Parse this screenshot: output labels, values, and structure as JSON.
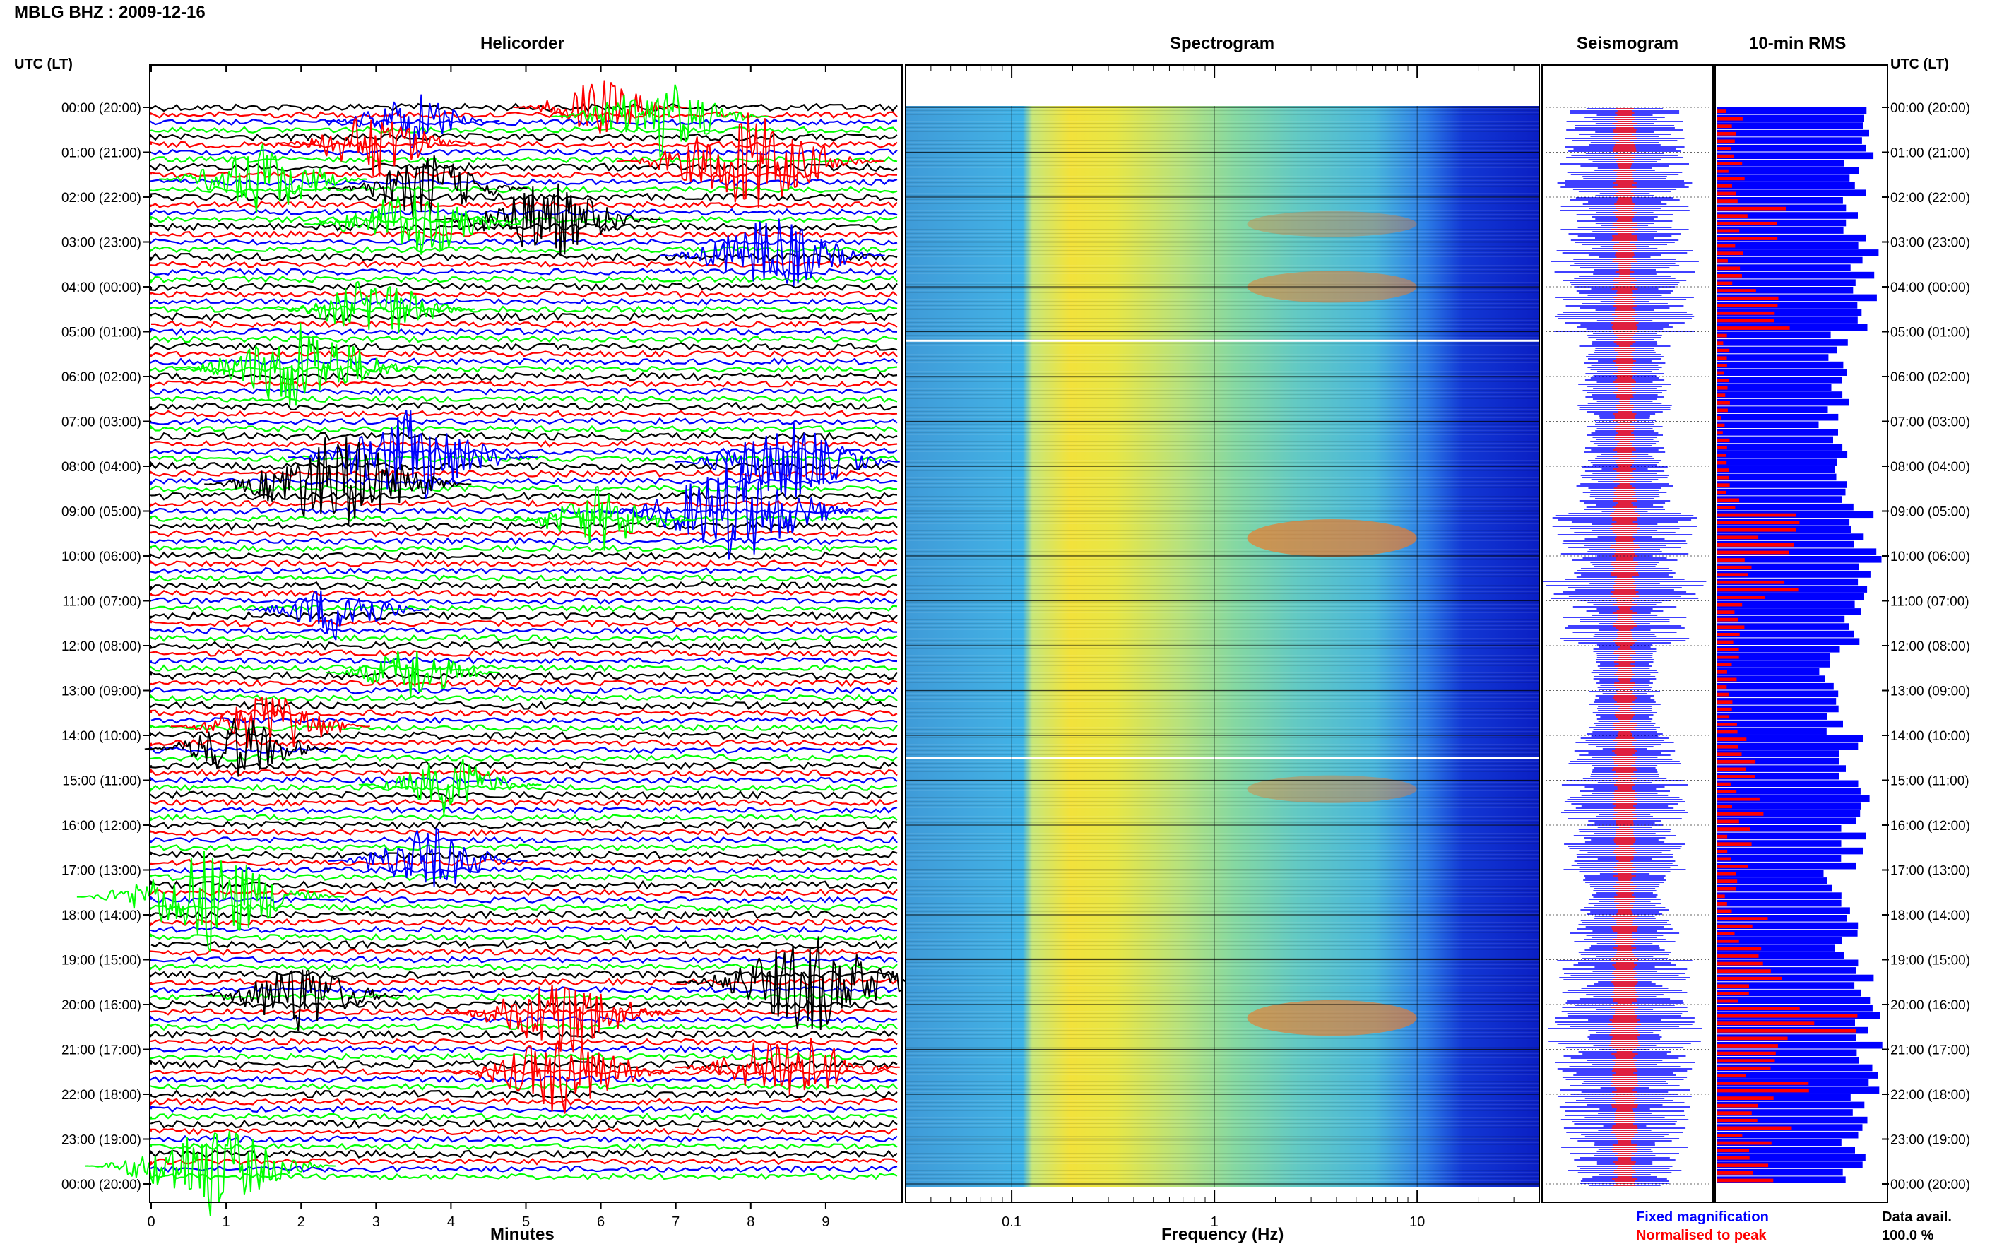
{
  "station_title": "MBLG BHZ : 2009-12-16",
  "left_time_header": "UTC (LT)",
  "right_time_header": "UTC (LT)",
  "time_labels": [
    "00:00 (20:00)",
    "01:00 (21:00)",
    "02:00 (22:00)",
    "03:00 (23:00)",
    "04:00 (00:00)",
    "05:00 (01:00)",
    "06:00 (02:00)",
    "07:00 (03:00)",
    "08:00 (04:00)",
    "09:00 (05:00)",
    "10:00 (06:00)",
    "11:00 (07:00)",
    "12:00 (08:00)",
    "13:00 (09:00)",
    "14:00 (10:00)",
    "15:00 (11:00)",
    "16:00 (12:00)",
    "17:00 (13:00)",
    "18:00 (14:00)",
    "19:00 (15:00)",
    "20:00 (16:00)",
    "21:00 (17:00)",
    "22:00 (18:00)",
    "23:00 (19:00)",
    "00:00 (20:00)"
  ],
  "colors": {
    "black": "#000000",
    "red": "#ff0000",
    "green": "#00ff00",
    "blue": "#0000ff"
  },
  "legend": {
    "fixed": "Fixed magnification",
    "fixed_color": "#0000ff",
    "normalised": "Normalised to peak",
    "normalised_color": "#ff0000"
  },
  "data_avail": {
    "label": "Data avail.",
    "value": "100.0 %"
  },
  "chart_data": [
    {
      "type": "line",
      "title": "Helicorder",
      "xlabel": "Minutes",
      "xlim": [
        0,
        10
      ],
      "x_ticks": [
        0,
        1,
        2,
        3,
        4,
        5,
        6,
        7,
        8,
        9
      ],
      "y_range_hours": [
        0,
        24
      ],
      "traces_per_hour": 6,
      "trace_color_cycle": [
        "black",
        "red",
        "blue",
        "green"
      ],
      "events": [
        {
          "hour": 0.0,
          "minute": 6.0,
          "color": "red",
          "amp": 0.9
        },
        {
          "hour": 0.2,
          "minute": 6.8,
          "color": "green",
          "amp": 1.4
        },
        {
          "hour": 0.3,
          "minute": 3.5,
          "color": "blue",
          "amp": 0.9
        },
        {
          "hour": 0.8,
          "minute": 3.0,
          "color": "red",
          "amp": 1.2
        },
        {
          "hour": 1.2,
          "minute": 8.0,
          "color": "red",
          "amp": 2.0
        },
        {
          "hour": 1.6,
          "minute": 1.5,
          "color": "green",
          "amp": 1.3
        },
        {
          "hour": 1.8,
          "minute": 3.7,
          "color": "black",
          "amp": 1.2
        },
        {
          "hour": 2.5,
          "minute": 5.3,
          "color": "black",
          "amp": 1.5
        },
        {
          "hour": 2.6,
          "minute": 3.5,
          "color": "green",
          "amp": 1.4
        },
        {
          "hour": 3.3,
          "minute": 8.3,
          "color": "blue",
          "amp": 1.5
        },
        {
          "hour": 4.5,
          "minute": 3.0,
          "color": "green",
          "amp": 1.2
        },
        {
          "hour": 5.8,
          "minute": 2.0,
          "color": "green",
          "amp": 1.8
        },
        {
          "hour": 7.8,
          "minute": 3.5,
          "color": "blue",
          "amp": 1.8
        },
        {
          "hour": 7.9,
          "minute": 8.5,
          "color": "blue",
          "amp": 1.5
        },
        {
          "hour": 8.4,
          "minute": 2.5,
          "color": "black",
          "amp": 2.0
        },
        {
          "hour": 9.0,
          "minute": 7.8,
          "color": "blue",
          "amp": 2.0
        },
        {
          "hour": 9.2,
          "minute": 6.0,
          "color": "green",
          "amp": 1.1
        },
        {
          "hour": 11.2,
          "minute": 2.5,
          "color": "blue",
          "amp": 1.0
        },
        {
          "hour": 12.6,
          "minute": 3.5,
          "color": "green",
          "amp": 0.9
        },
        {
          "hour": 13.8,
          "minute": 1.6,
          "color": "red",
          "amp": 1.2
        },
        {
          "hour": 14.3,
          "minute": 1.2,
          "color": "black",
          "amp": 1.1
        },
        {
          "hour": 15.1,
          "minute": 4.0,
          "color": "green",
          "amp": 1.0
        },
        {
          "hour": 16.8,
          "minute": 3.7,
          "color": "blue",
          "amp": 1.2
        },
        {
          "hour": 17.6,
          "minute": 0.8,
          "color": "green",
          "amp": 2.0
        },
        {
          "hour": 19.5,
          "minute": 8.8,
          "color": "black",
          "amp": 2.0
        },
        {
          "hour": 19.8,
          "minute": 2.0,
          "color": "black",
          "amp": 1.3
        },
        {
          "hour": 20.2,
          "minute": 5.5,
          "color": "red",
          "amp": 1.6
        },
        {
          "hour": 21.4,
          "minute": 8.5,
          "color": "red",
          "amp": 1.5
        },
        {
          "hour": 21.5,
          "minute": 5.5,
          "color": "red",
          "amp": 1.6
        },
        {
          "hour": 23.6,
          "minute": 0.8,
          "color": "green",
          "amp": 1.8
        }
      ]
    },
    {
      "type": "heatmap",
      "title": "Spectrogram",
      "xlabel": "Frequency (Hz)",
      "x_scale": "log",
      "xlim": [
        0.03,
        40
      ],
      "x_ticks": [
        0.1,
        1,
        10
      ],
      "x_tick_labels": [
        "0.1",
        "1",
        "10"
      ],
      "y_range_hours": [
        0,
        24
      ],
      "colormap": "jet"
    },
    {
      "type": "line",
      "title": "Seismogram",
      "series": [
        {
          "name": "Fixed magnification",
          "color": "#0000ff"
        },
        {
          "name": "Normalised to peak",
          "color": "#ff0000"
        }
      ],
      "y_range_hours": [
        0,
        24
      ]
    },
    {
      "type": "bar",
      "title": "10-min RMS",
      "orientation": "horizontal",
      "bins": 144,
      "y_range_hours": [
        0,
        24
      ],
      "series": [
        {
          "name": "Fixed magnification",
          "color": "#0000ff"
        },
        {
          "name": "Normalised to peak",
          "color": "#ff0000"
        }
      ],
      "hourly_fixed": [
        0.9,
        0.93,
        0.92,
        0.96,
        0.97,
        0.8,
        0.82,
        0.78,
        0.83,
        0.96,
        1.0,
        0.92,
        0.74,
        0.76,
        0.88,
        0.92,
        0.9,
        0.8,
        0.86,
        0.93,
        0.98,
        0.96,
        0.94,
        0.9
      ],
      "hourly_normalised": [
        0.12,
        0.12,
        0.3,
        0.12,
        0.35,
        0.06,
        0.06,
        0.06,
        0.1,
        0.45,
        0.4,
        0.12,
        0.1,
        0.1,
        0.18,
        0.2,
        0.15,
        0.12,
        0.25,
        0.3,
        0.6,
        0.4,
        0.35,
        0.25
      ]
    }
  ]
}
